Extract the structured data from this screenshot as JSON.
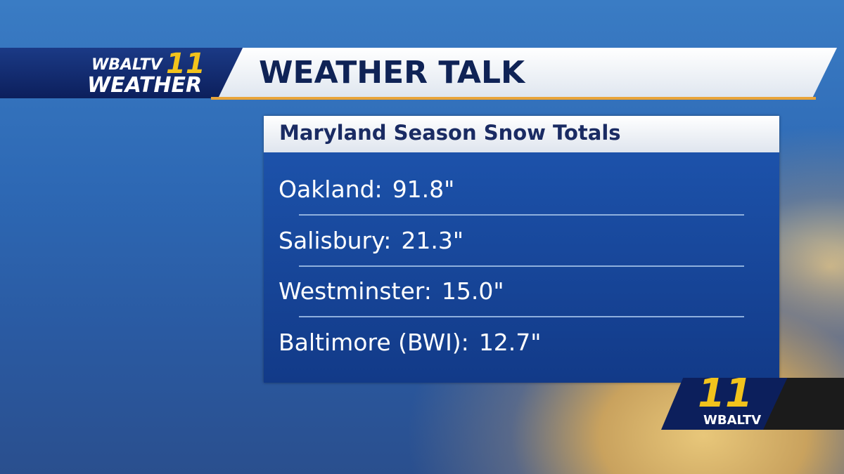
{
  "header": {
    "logo_top": "WBALTV",
    "logo_number": "11",
    "logo_bottom": "WEATHER",
    "title": "WEATHER TALK"
  },
  "panel": {
    "title": "Maryland Season Snow Totals",
    "rows": [
      [
        "Oakland:",
        "91.8\""
      ],
      [
        "Salisbury:",
        "21.3\""
      ],
      [
        "Westminster:",
        "15.0\""
      ],
      [
        "Baltimore (BWI):",
        "12.7\""
      ]
    ]
  },
  "corner_logo": {
    "number": "11",
    "text": "WBALTV"
  }
}
